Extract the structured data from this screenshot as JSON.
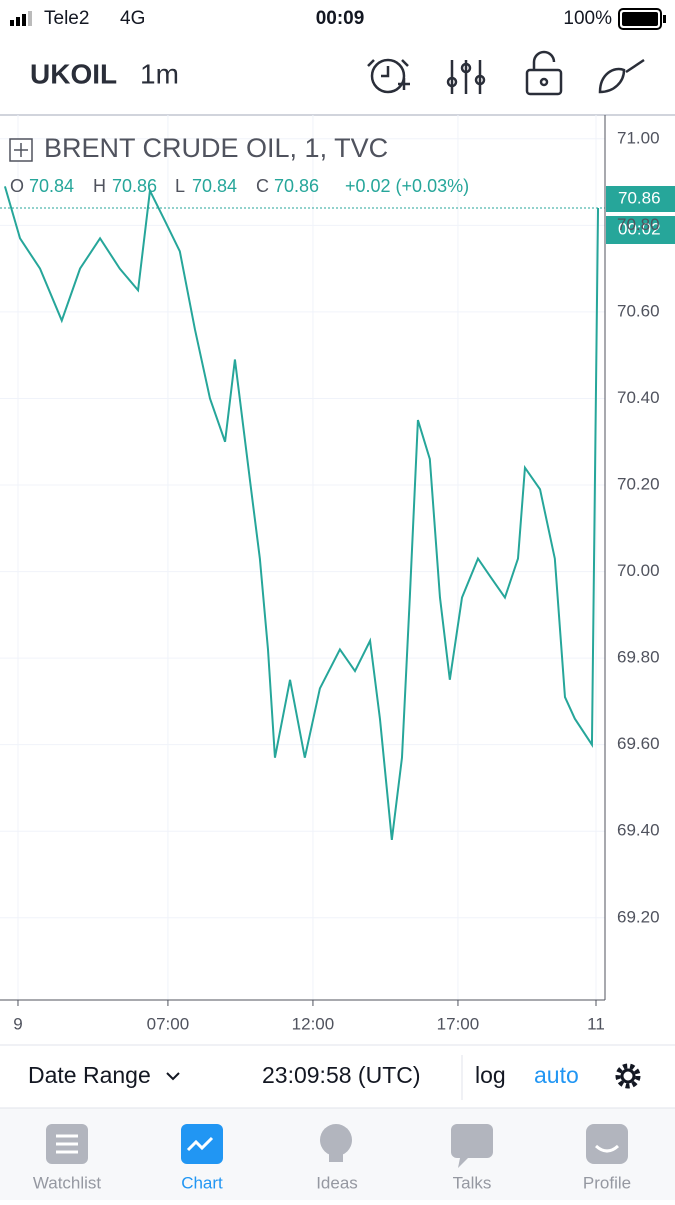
{
  "status_bar": {
    "carrier": "Tele2",
    "network": "4G",
    "time": "00:09",
    "battery": "100%"
  },
  "toolbar": {
    "symbol": "UKOIL",
    "interval": "1m"
  },
  "chart_data": {
    "type": "line",
    "title": "BRENT CRUDE OIL, 1, TVC",
    "legend": {
      "open_label": "O",
      "open": "70.84",
      "high_label": "H",
      "high": "70.86",
      "low_label": "L",
      "low": "70.84",
      "close_label": "C",
      "close": "70.86",
      "change": "+0.02 (+0.03%)"
    },
    "price_badge": "70.86",
    "countdown_badge": "00:02",
    "x": [
      1.38,
      1.9,
      2.59,
      3.34,
      3.97,
      4.66,
      5.34,
      5.97,
      6.38,
      6.9,
      7.41,
      7.93,
      8.45,
      8.97,
      9.31,
      9.83,
      10.17,
      10.45,
      10.69,
      11.21,
      11.72,
      12.24,
      12.93,
      13.45,
      13.97,
      14.31,
      14.72,
      15.07,
      15.34,
      15.62,
      16.03,
      16.38,
      16.72,
      17.14,
      17.69,
      18.1,
      18.62,
      19.07,
      19.31,
      19.83,
      20.34,
      20.69,
      21.03,
      21.62,
      21.83
    ],
    "series": [
      {
        "name": "Close",
        "color": "#26a69a",
        "values": [
          70.89,
          70.77,
          70.7,
          70.58,
          70.7,
          70.77,
          70.7,
          70.65,
          70.88,
          70.81,
          70.74,
          70.56,
          70.4,
          70.3,
          70.49,
          70.21,
          70.03,
          69.82,
          69.57,
          69.75,
          69.57,
          69.73,
          69.82,
          69.77,
          69.84,
          69.66,
          69.38,
          69.57,
          69.94,
          70.35,
          70.26,
          69.94,
          69.75,
          69.94,
          70.03,
          69.99,
          69.94,
          70.03,
          70.24,
          70.19,
          70.03,
          69.71,
          69.66,
          69.6,
          70.84
        ]
      }
    ],
    "xlim": [
      1.21,
      22.07
    ],
    "ylim": [
      69.01,
      71.055
    ],
    "xticks": [
      {
        "value": 1.83,
        "label": "9"
      },
      {
        "value": 7,
        "label": "07:00"
      },
      {
        "value": 12,
        "label": "12:00"
      },
      {
        "value": 17,
        "label": "17:00"
      },
      {
        "value": 21.76,
        "label": "11"
      }
    ],
    "yticks": [
      {
        "value": 71,
        "label": "71.00"
      },
      {
        "value": 70.8,
        "label": "70.80"
      },
      {
        "value": 70.6,
        "label": "70.60"
      },
      {
        "value": 70.4,
        "label": "70.40"
      },
      {
        "value": 70.2,
        "label": "70.20"
      },
      {
        "value": 70,
        "label": "70.00"
      },
      {
        "value": 69.8,
        "label": "69.80"
      },
      {
        "value": 69.6,
        "label": "69.60"
      },
      {
        "value": 69.4,
        "label": "69.40"
      },
      {
        "value": 69.2,
        "label": "69.20"
      }
    ],
    "grid": true
  },
  "bottom_bar": {
    "date_range": "Date Range",
    "clock": "23:09:58 (UTC)",
    "log": "log",
    "auto": "auto"
  },
  "tabs": [
    "Watchlist",
    "Chart",
    "Ideas",
    "Talks",
    "Profile"
  ]
}
